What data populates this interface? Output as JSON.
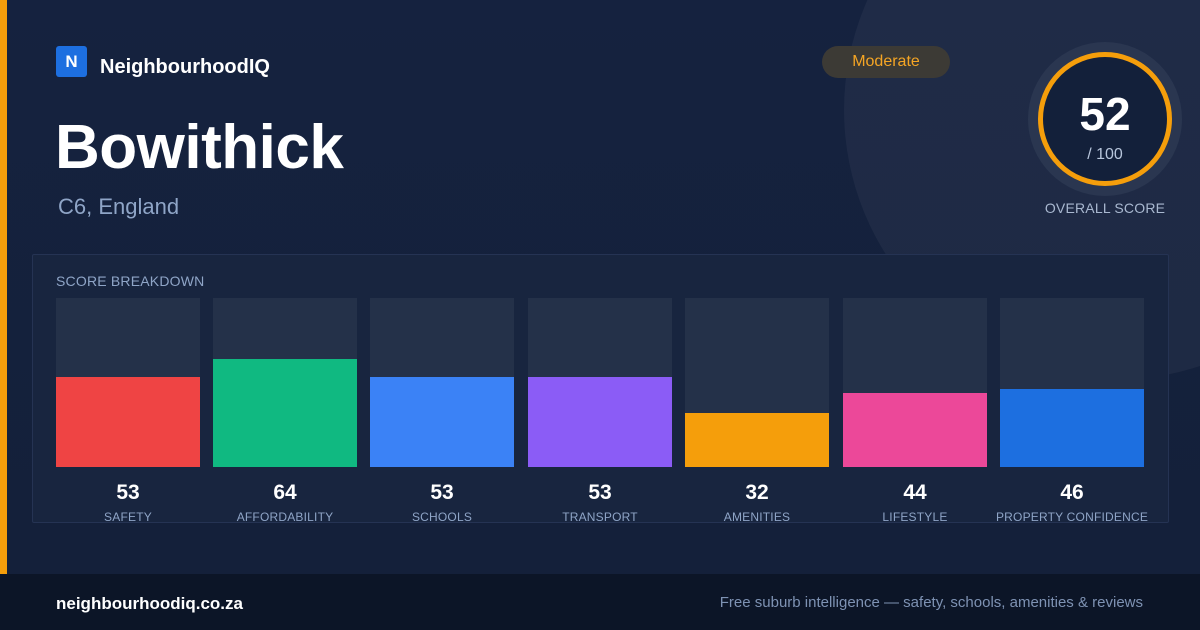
{
  "brand": {
    "logo_letter": "N",
    "name": "NeighbourhoodIQ",
    "logo_color": "#1d6fe0"
  },
  "location": {
    "name": "Bowithick",
    "region": "C6, England"
  },
  "rating_badge": {
    "label": "Moderate",
    "color": "#f5a524"
  },
  "overall": {
    "score": "52",
    "max_label": "/ 100",
    "label": "OVERALL SCORE",
    "ring_color": "#f59e0b"
  },
  "breakdown": {
    "title": "SCORE BREAKDOWN",
    "max": 100,
    "items": [
      {
        "label": "SAFETY",
        "value": 53,
        "color": "#ef4444"
      },
      {
        "label": "AFFORDABILITY",
        "value": 64,
        "color": "#10b981"
      },
      {
        "label": "SCHOOLS",
        "value": 53,
        "color": "#3b82f6"
      },
      {
        "label": "TRANSPORT",
        "value": 53,
        "color": "#8b5cf6"
      },
      {
        "label": "AMENITIES",
        "value": 32,
        "color": "#f59e0b"
      },
      {
        "label": "LIFESTYLE",
        "value": 44,
        "color": "#ec4899"
      },
      {
        "label": "PROPERTY CONFIDENCE",
        "value": 46,
        "color": "#1d6fe0"
      }
    ]
  },
  "footer": {
    "url": "neighbourhoodiq.co.za",
    "tagline": "Free suburb intelligence — safety, schools, amenities & reviews"
  }
}
